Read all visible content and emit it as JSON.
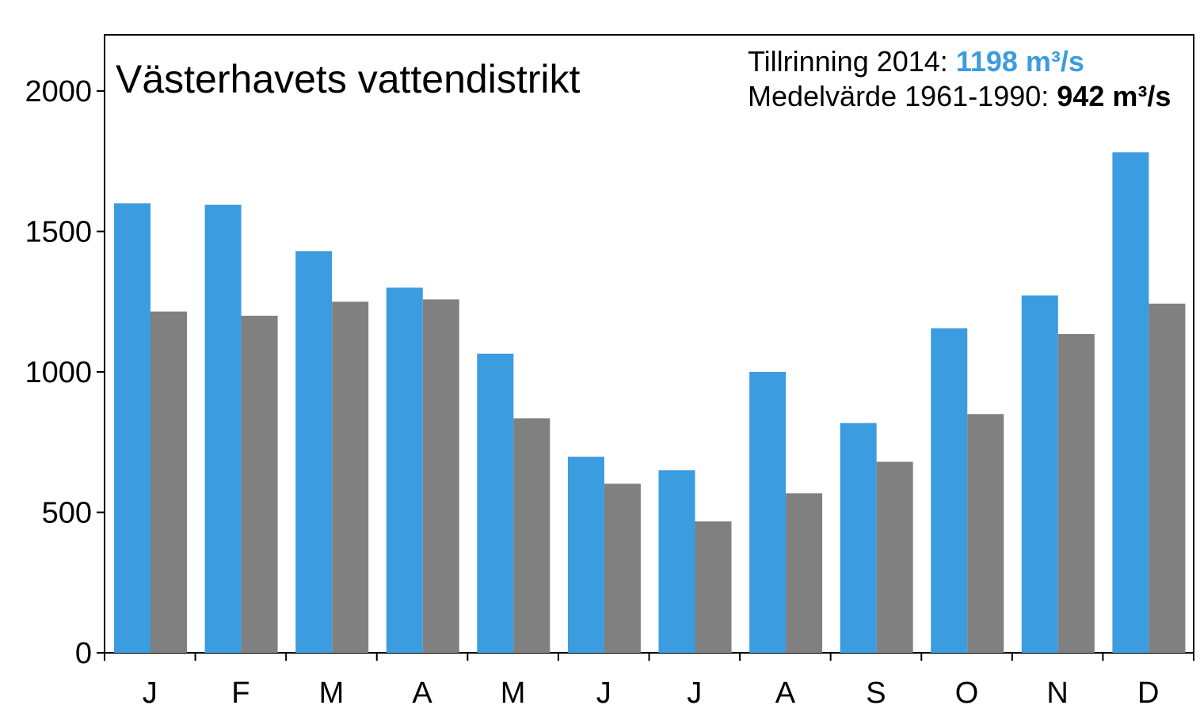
{
  "chart_data": {
    "type": "bar",
    "title": "Västerhavets vattendistrikt",
    "categories": [
      "J",
      "F",
      "M",
      "A",
      "M",
      "J",
      "J",
      "A",
      "S",
      "O",
      "N",
      "D"
    ],
    "series": [
      {
        "values": [
          1600,
          1595,
          1430,
          1300,
          1065,
          698,
          650,
          1000,
          818,
          1155,
          1272,
          1782
        ]
      },
      {
        "values": [
          1215,
          1200,
          1250,
          1258,
          835,
          602,
          468,
          568,
          680,
          850,
          1135,
          1243
        ]
      }
    ],
    "ylim": [
      0,
      2200
    ],
    "yticks": [
      0,
      500,
      1000,
      1500,
      2000
    ],
    "grid": false,
    "colors": {
      "series_2014": "#3b9ce0",
      "series_mean": "#808080"
    },
    "annotations": {
      "line1_prefix": "Tillrinning 2014: ",
      "line1_value": "1198 m³/s",
      "line2_prefix": "Medelvärde 1961-1990: ",
      "line2_value": "942 m³/s"
    }
  }
}
